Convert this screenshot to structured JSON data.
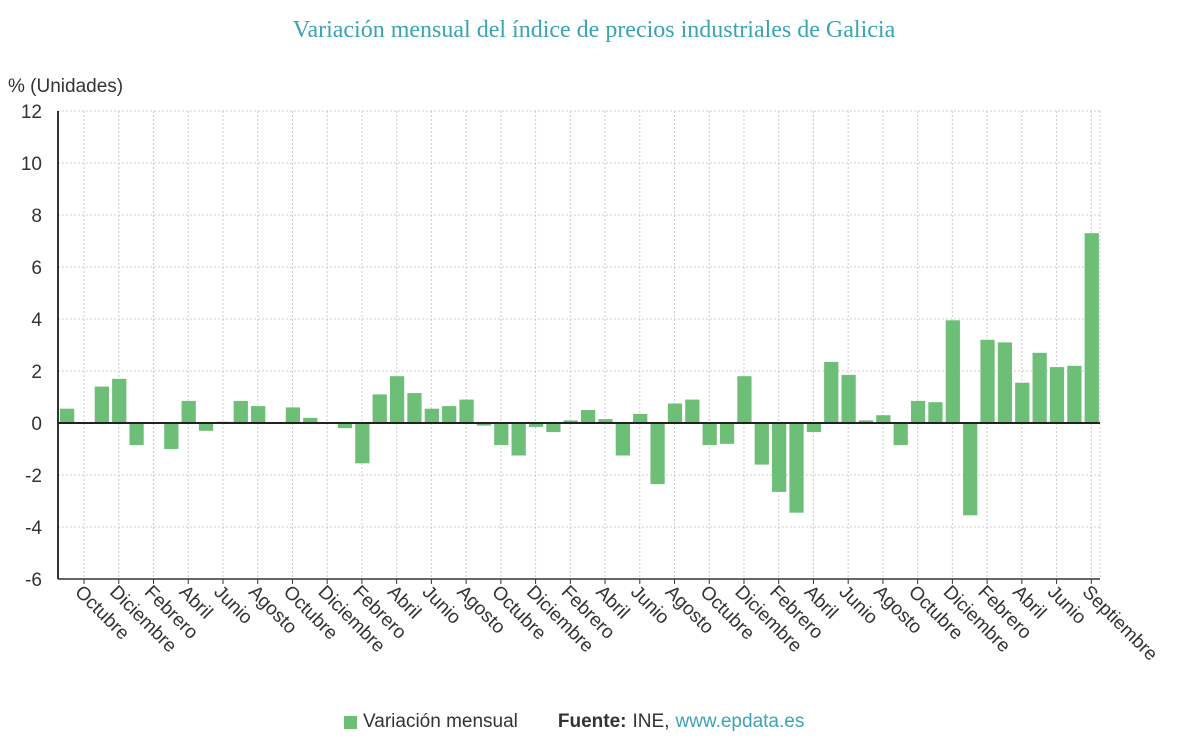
{
  "chart_data": {
    "type": "bar",
    "title": "Variación mensual del índice de precios industriales de Galicia",
    "ylabel": "% (Unidades)",
    "ylim": [
      -6,
      12
    ],
    "yticks": [
      -6,
      -4,
      -2,
      0,
      2,
      4,
      6,
      8,
      10,
      12
    ],
    "grid": true,
    "legend_position": "bottom",
    "bar_color": "#6dbe77",
    "tick_labels": [
      "Octubre",
      "Diciembre",
      "Febrero",
      "Abril",
      "Junio",
      "Agosto",
      "Octubre",
      "Diciembre",
      "Febrero",
      "Abril",
      "Junio",
      "Agosto",
      "Octubre",
      "Diciembre",
      "Febrero",
      "Abril",
      "Junio",
      "Agosto",
      "Octubre",
      "Diciembre",
      "Febrero",
      "Abril",
      "Junio",
      "Agosto",
      "Octubre",
      "Diciembre",
      "Febrero",
      "Abril",
      "Junio",
      "Septiembre"
    ],
    "series": [
      {
        "name": "Variación mensual",
        "values": [
          0.55,
          0.0,
          1.4,
          1.7,
          -0.85,
          0.0,
          -1.0,
          0.85,
          -0.3,
          0.05,
          0.85,
          0.65,
          0.0,
          0.6,
          0.2,
          0.0,
          -0.2,
          -1.55,
          1.1,
          1.8,
          1.15,
          0.55,
          0.65,
          0.9,
          -0.1,
          -0.85,
          -1.25,
          -0.15,
          -0.35,
          0.1,
          0.5,
          0.15,
          -1.25,
          0.35,
          -2.35,
          0.75,
          0.9,
          -0.85,
          -0.8,
          1.8,
          -1.6,
          -2.65,
          -3.45,
          -0.35,
          2.35,
          1.85,
          0.1,
          0.3,
          -0.85,
          0.85,
          0.8,
          3.95,
          -3.55,
          3.2,
          3.1,
          1.55,
          2.7,
          2.15,
          2.2,
          7.3
        ]
      }
    ]
  },
  "footer": {
    "legend_label": "Variación mensual",
    "source_label": "Fuente:",
    "source_org": "INE,",
    "source_link": "www.epdata.es"
  }
}
